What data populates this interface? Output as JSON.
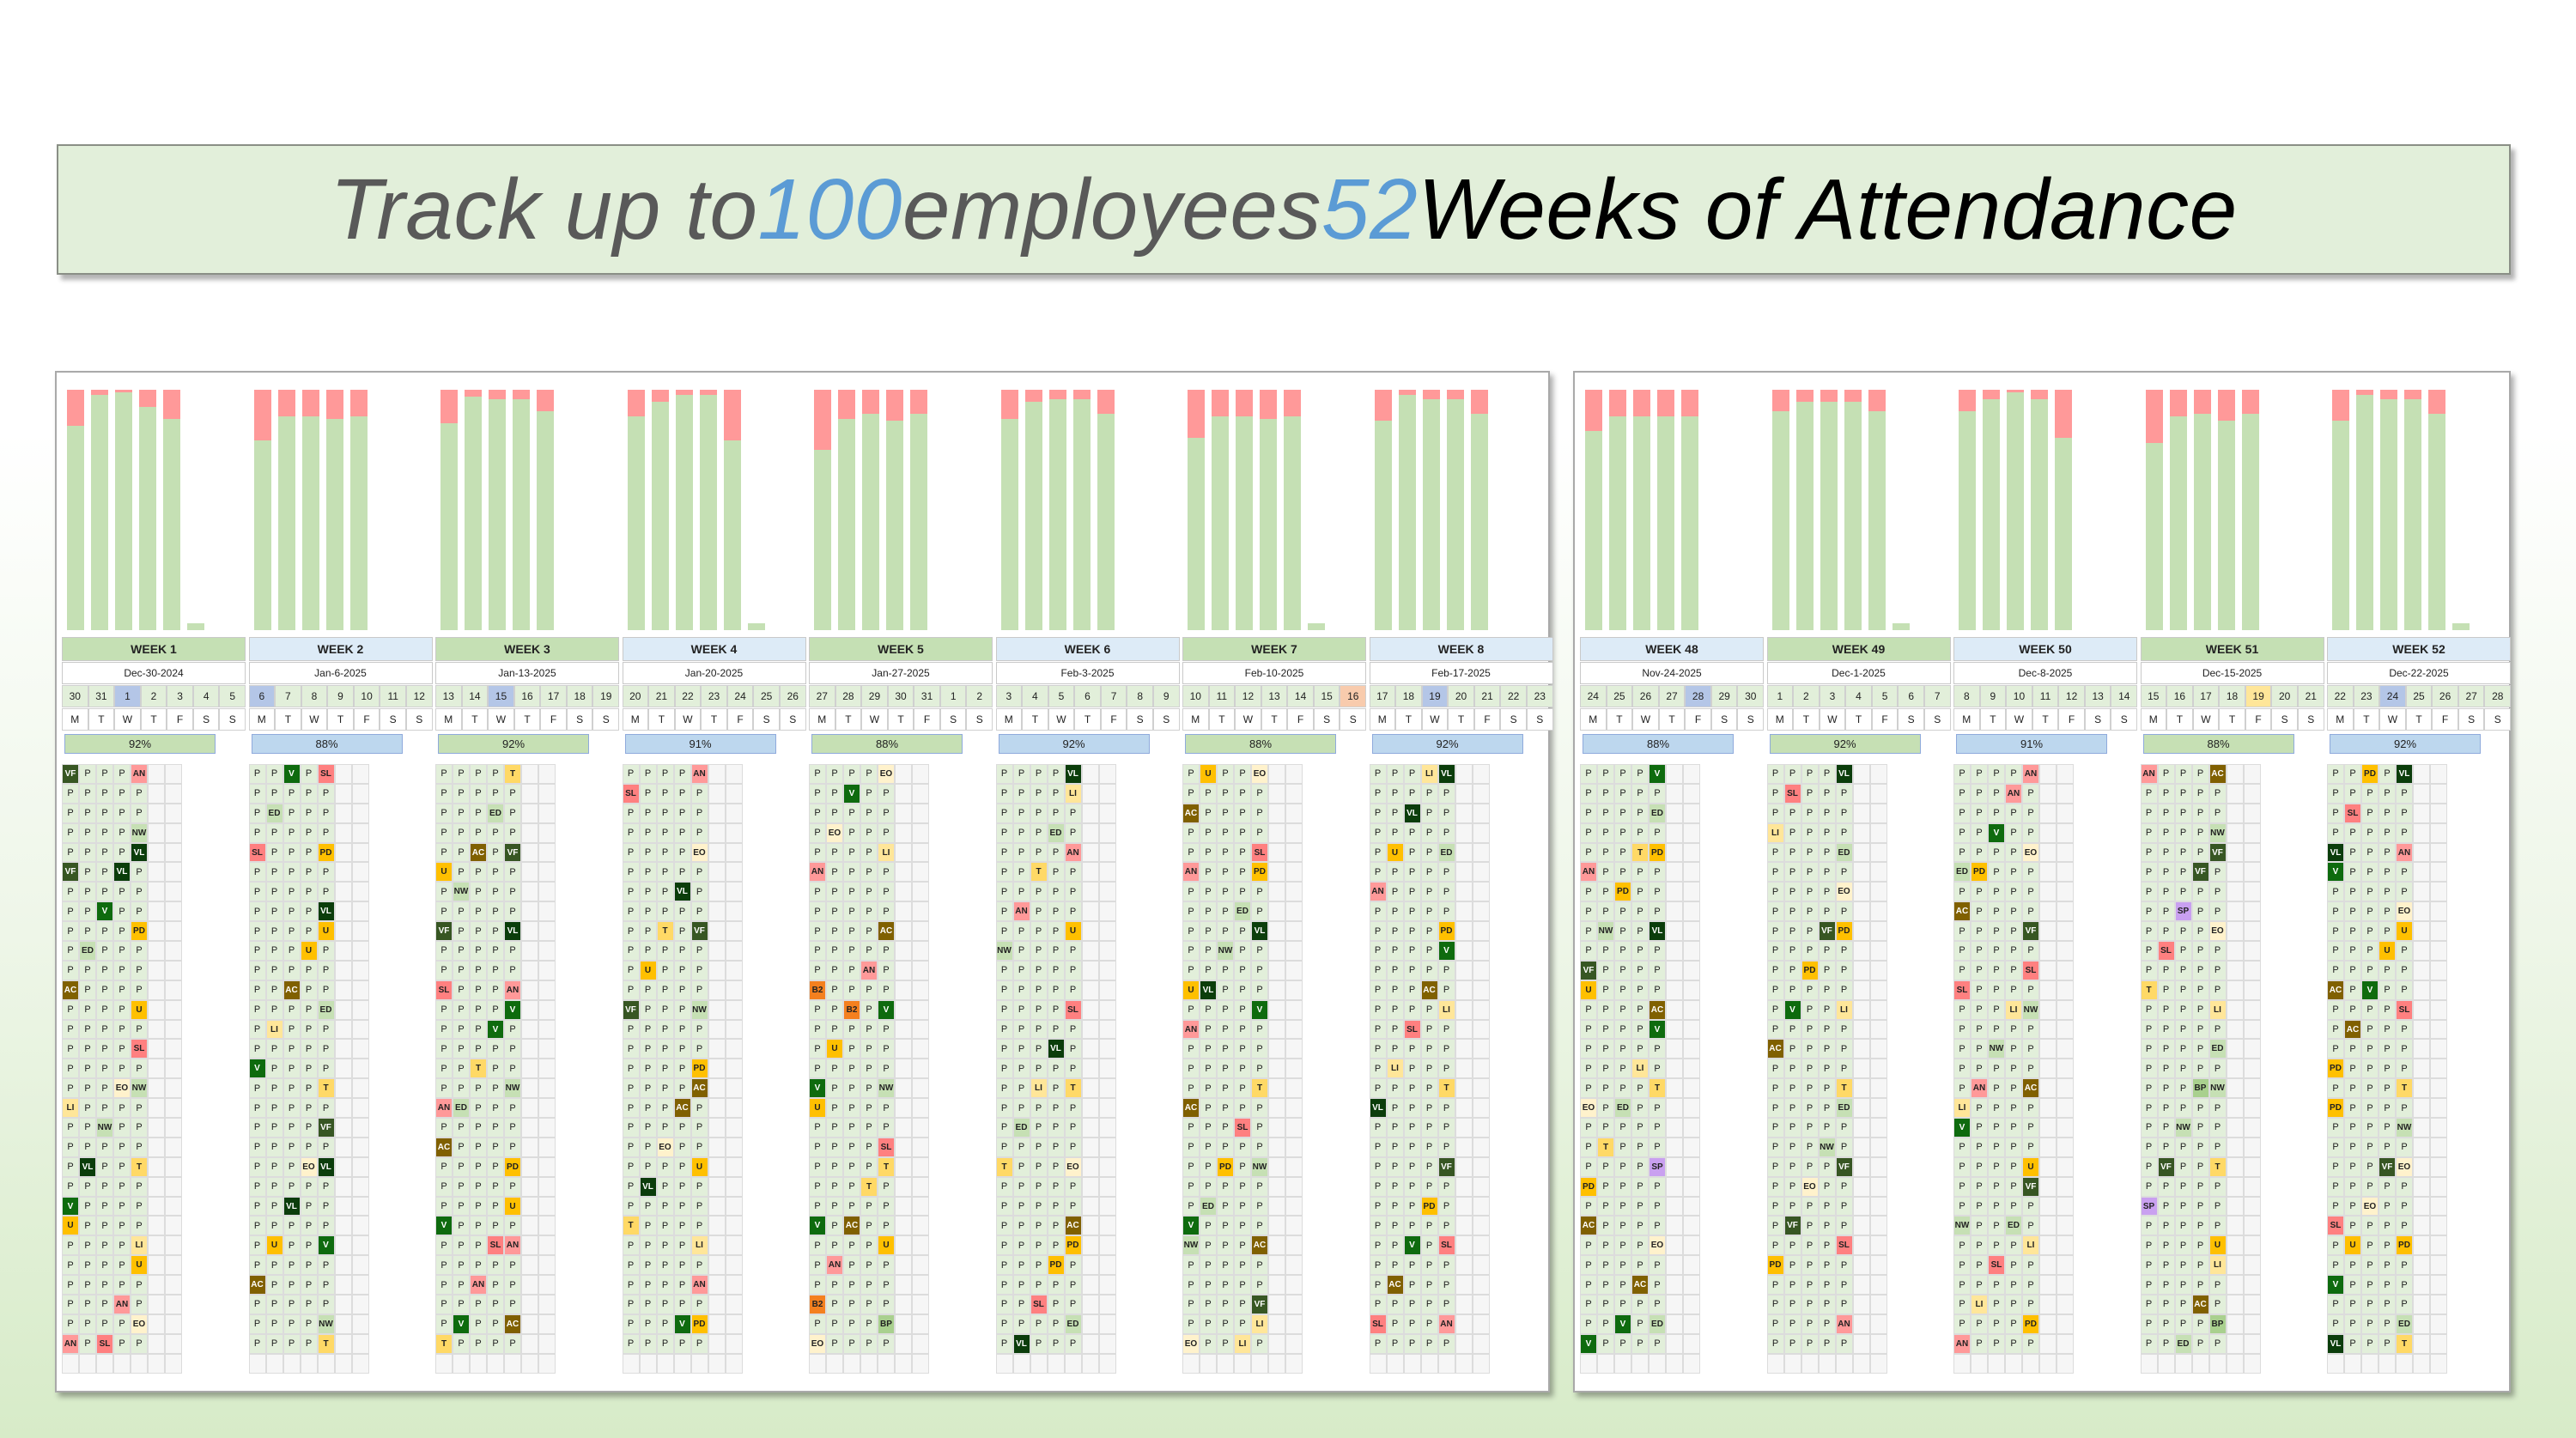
{
  "banner": {
    "part1": "Track up to ",
    "num1": "100",
    "part2": " employees ",
    "num2": "52",
    "part3": " Weeks of Attendance"
  },
  "colors": {
    "present": "#e2efda",
    "bar_present": "#c5e0b4",
    "bar_absent": "#ff9999",
    "week_title_green": "#c5e0b4",
    "week_title_blue": "#ddebf7",
    "pct_green": "#c6e0b4",
    "pct_blue": "#bdd7ee"
  },
  "codes": {
    "VF": {
      "bg": "#375623",
      "fg": "#ffffff"
    },
    "AC": {
      "bg": "#806000",
      "fg": "#ffffff"
    },
    "LI": {
      "bg": "#ffe699",
      "fg": "#222222"
    },
    "U": {
      "bg": "#ffc000",
      "fg": "#222222"
    },
    "AN": {
      "bg": "#ff9999",
      "fg": "#222222"
    },
    "SL": {
      "bg": "#ff8080",
      "fg": "#222222"
    },
    "EO": {
      "bg": "#fff2cc",
      "fg": "#222222"
    },
    "NW": {
      "bg": "#c6e0b4",
      "fg": "#222222"
    },
    "VL": {
      "bg": "#0b3d0b",
      "fg": "#ffffff"
    },
    "V": {
      "bg": "#0e6b0e",
      "fg": "#ffffff"
    },
    "ED": {
      "bg": "#c6e0b4",
      "fg": "#222222"
    },
    "T": {
      "bg": "#ffd966",
      "fg": "#222222"
    },
    "PD": {
      "bg": "#ffc000",
      "fg": "#222222"
    },
    "BP": {
      "bg": "#a9d08e",
      "fg": "#222222"
    },
    "B2": {
      "bg": "#f4801f",
      "fg": "#222222"
    },
    "SP": {
      "bg": "#c9a0f0",
      "fg": "#222222"
    }
  },
  "dow": [
    "M",
    "T",
    "W",
    "T",
    "F",
    "S",
    "S"
  ],
  "left_weeks": [
    {
      "title": "WEEK 1",
      "date": "Dec-30-2024",
      "days": [
        "30",
        "31",
        "1",
        "2",
        "3",
        "4",
        "5"
      ],
      "pct": "92%",
      "style": "green",
      "hl": 2,
      "bars": [
        0.85,
        0.98,
        0.99,
        0.93,
        0.88
      ]
    },
    {
      "title": "WEEK 2",
      "date": "Jan-6-2025",
      "days": [
        "6",
        "7",
        "8",
        "9",
        "10",
        "11",
        "12"
      ],
      "pct": "88%",
      "style": "blue",
      "hl": 0,
      "bars": [
        0.79,
        0.89,
        0.89,
        0.88,
        0.89
      ]
    },
    {
      "title": "WEEK 3",
      "date": "Jan-13-2025",
      "days": [
        "13",
        "14",
        "15",
        "16",
        "17",
        "18",
        "19"
      ],
      "pct": "92%",
      "style": "green",
      "hl": 2,
      "bars": [
        0.86,
        0.97,
        0.96,
        0.96,
        0.91
      ]
    },
    {
      "title": "WEEK 4",
      "date": "Jan-20-2025",
      "days": [
        "20",
        "21",
        "22",
        "23",
        "24",
        "25",
        "26"
      ],
      "pct": "91%",
      "style": "blue",
      "hl": -1,
      "bars": [
        0.89,
        0.95,
        0.98,
        0.98,
        0.79
      ]
    },
    {
      "title": "WEEK 5",
      "date": "Jan-27-2025",
      "days": [
        "27",
        "28",
        "29",
        "30",
        "31",
        "1",
        "2"
      ],
      "pct": "88%",
      "style": "green",
      "hl": -1,
      "bars": [
        0.75,
        0.88,
        0.9,
        0.87,
        0.9
      ]
    },
    {
      "title": "WEEK 6",
      "date": "Feb-3-2025",
      "days": [
        "3",
        "4",
        "5",
        "6",
        "7",
        "8",
        "9"
      ],
      "pct": "92%",
      "style": "blue",
      "hl": -1,
      "bars": [
        0.88,
        0.95,
        0.96,
        0.96,
        0.9
      ]
    },
    {
      "title": "WEEK 7",
      "date": "Feb-10-2025",
      "days": [
        "10",
        "11",
        "12",
        "13",
        "14",
        "15",
        "16"
      ],
      "pct": "88%",
      "style": "green",
      "hl": 6,
      "bars": [
        0.8,
        0.89,
        0.89,
        0.88,
        0.89
      ]
    },
    {
      "title": "WEEK 8",
      "date": "Feb-17-2025",
      "days": [
        "17",
        "18",
        "19",
        "20",
        "21",
        "22",
        "23"
      ],
      "pct": "92%",
      "style": "blue",
      "hl": 2,
      "bars": [
        0.87,
        0.98,
        0.96,
        0.96,
        0.9
      ]
    }
  ],
  "right_weeks": [
    {
      "title": "WEEK 48",
      "date": "Nov-24-2025",
      "days": [
        "24",
        "25",
        "26",
        "27",
        "28",
        "29",
        "30"
      ],
      "pct": "88%",
      "style": "blue",
      "hl": 4,
      "bars": [
        0.83,
        0.89,
        0.89,
        0.89,
        0.89
      ]
    },
    {
      "title": "WEEK 49",
      "date": "Dec-1-2025",
      "days": [
        "1",
        "2",
        "3",
        "4",
        "5",
        "6",
        "7"
      ],
      "pct": "92%",
      "style": "green",
      "hl": -1,
      "bars": [
        0.91,
        0.95,
        0.95,
        0.95,
        0.91
      ]
    },
    {
      "title": "WEEK 50",
      "date": "Dec-8-2025",
      "days": [
        "8",
        "9",
        "10",
        "11",
        "12",
        "13",
        "14"
      ],
      "pct": "91%",
      "style": "blue",
      "hl": -1,
      "bars": [
        0.91,
        0.96,
        0.99,
        0.96,
        0.8
      ]
    },
    {
      "title": "WEEK 51",
      "date": "Dec-15-2025",
      "days": [
        "15",
        "16",
        "17",
        "18",
        "19",
        "20",
        "21"
      ],
      "pct": "88%",
      "style": "green",
      "hl": 4,
      "bars": [
        0.78,
        0.89,
        0.9,
        0.87,
        0.9
      ]
    },
    {
      "title": "WEEK 52",
      "date": "Dec-22-2025",
      "days": [
        "22",
        "23",
        "24",
        "25",
        "26",
        "27",
        "28"
      ],
      "pct": "92%",
      "style": "blue",
      "hl": 2,
      "bars": [
        0.87,
        0.98,
        0.96,
        0.96,
        0.9
      ]
    }
  ],
  "code_patterns": [
    [
      "VF",
      "AC",
      "LI",
      "U",
      "AN",
      "SL",
      "EO",
      "NW",
      "VL",
      "V",
      "ED",
      "T",
      "PD"
    ],
    [
      "AC",
      "LI",
      "V",
      "ED",
      "SL",
      "AN",
      "NW",
      "T",
      "PD",
      "VF",
      "EO",
      "VL",
      "U"
    ],
    [
      "U",
      "SL",
      "AN",
      "V",
      "T",
      "ED",
      "AC",
      "NW",
      "VF",
      "LI",
      "EO",
      "PD",
      "VL"
    ],
    [
      "ED",
      "SL",
      "LI",
      "NW",
      "AN",
      "V",
      "PD",
      "AC",
      "EO",
      "VL",
      "T",
      "U",
      "VF"
    ],
    [
      "AN",
      "B2",
      "U",
      "V",
      "EO",
      "ED",
      "BP",
      "NW",
      "LI",
      "VF",
      "SL",
      "T",
      "AC"
    ],
    [
      "V",
      "AC",
      "PD",
      "SL",
      "VL",
      "LI",
      "ED",
      "T",
      "AN",
      "NW",
      "VF",
      "EO",
      "U"
    ],
    [
      "AN",
      "U",
      "AC",
      "V",
      "EO",
      "VF",
      "LI",
      "T",
      "SL",
      "PD",
      "ED",
      "NW",
      "VL"
    ],
    [
      "V",
      "AC",
      "SL",
      "LI",
      "VL",
      "U",
      "AN",
      "T",
      "ED",
      "NW",
      "EO",
      "VF",
      "PD"
    ],
    [
      "AN",
      "U",
      "EO",
      "AC",
      "V",
      "LI",
      "ED",
      "T",
      "PD",
      "NW",
      "VF",
      "SP",
      "VL"
    ],
    [
      "V",
      "AC",
      "SL",
      "LI",
      "VL",
      "U",
      "AN",
      "T",
      "ED",
      "NW",
      "EO",
      "VF",
      "PD"
    ],
    [
      "ED",
      "SL",
      "LI",
      "NW",
      "AN",
      "V",
      "PD",
      "AC",
      "EO",
      "VL",
      "T",
      "U",
      "VF"
    ],
    [
      "AN",
      "B2",
      "U",
      "LI",
      "AC",
      "ED",
      "BP",
      "NW",
      "VF",
      "SP",
      "SL",
      "T",
      "EO"
    ],
    [
      "V",
      "AC",
      "PD",
      "SL",
      "VL",
      "LI",
      "ED",
      "T",
      "AN",
      "NW",
      "VF",
      "EO",
      "U"
    ]
  ]
}
